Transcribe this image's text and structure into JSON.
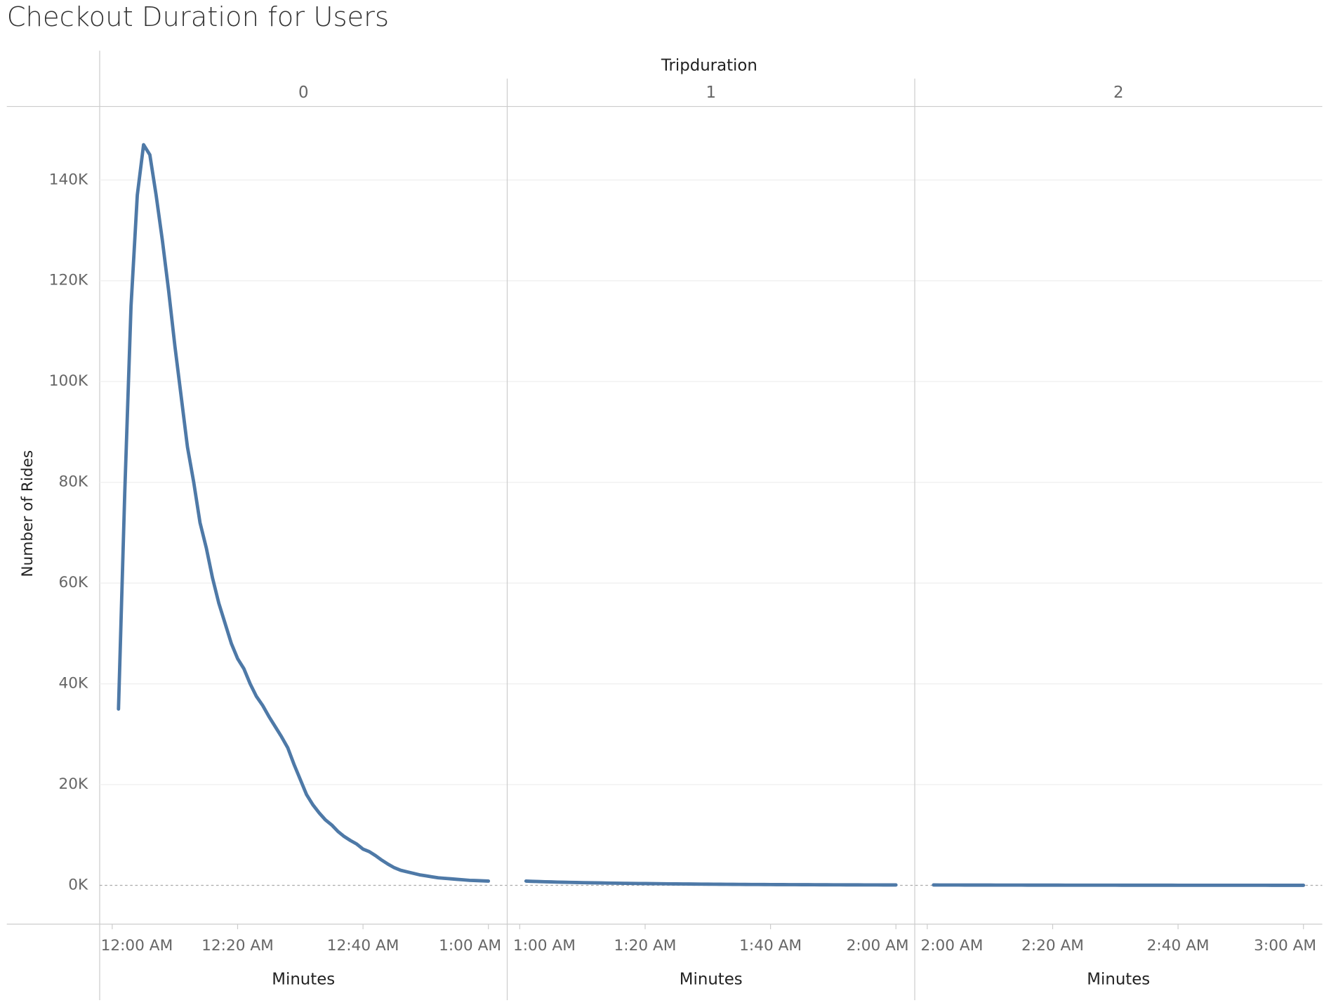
{
  "chart_data": {
    "type": "line",
    "title": "Checkout Duration for Users",
    "header": "Tripduration",
    "ylabel": "Number of Rides",
    "color": "#4e79a7",
    "grid": true,
    "ylim": [
      -7700,
      154600
    ],
    "yticks": [
      {
        "value": 0,
        "label": "0K"
      },
      {
        "value": 20000,
        "label": "20K"
      },
      {
        "value": 40000,
        "label": "40K"
      },
      {
        "value": 60000,
        "label": "60K"
      },
      {
        "value": 80000,
        "label": "80K"
      },
      {
        "value": 100000,
        "label": "100K"
      },
      {
        "value": 120000,
        "label": "120K"
      },
      {
        "value": 140000,
        "label": "140K"
      }
    ],
    "panels": [
      {
        "label": "0",
        "xlabel": "Minutes",
        "xlim": [
          -2,
          63
        ],
        "xticks": [
          {
            "value": 0,
            "label": "12:00 AM"
          },
          {
            "value": 20,
            "label": "12:20 AM"
          },
          {
            "value": 40,
            "label": "12:40 AM"
          },
          {
            "value": 60,
            "label": "1:00 AM"
          }
        ],
        "x": [
          1,
          2,
          3,
          4,
          5,
          6,
          7,
          8,
          9,
          10,
          11,
          12,
          13,
          14,
          15,
          16,
          17,
          18,
          19,
          20,
          21,
          22,
          23,
          24,
          25,
          26,
          27,
          28,
          29,
          30,
          31,
          32,
          33,
          34,
          35,
          36,
          37,
          38,
          39,
          40,
          41,
          42,
          43,
          44,
          45,
          46,
          47,
          48,
          49,
          50,
          51,
          52,
          53,
          54,
          55,
          56,
          57,
          58,
          59,
          60
        ],
        "values": [
          35000,
          78000,
          115000,
          137000,
          147000,
          145000,
          137000,
          128000,
          118000,
          107000,
          97000,
          87000,
          80000,
          72000,
          67000,
          61000,
          56000,
          52000,
          48000,
          45000,
          43000,
          40000,
          37500,
          35700,
          33500,
          31500,
          29500,
          27300,
          24000,
          21000,
          18000,
          16000,
          14400,
          13000,
          12000,
          10700,
          9700,
          8900,
          8200,
          7200,
          6700,
          5900,
          5000,
          4200,
          3500,
          3000,
          2700,
          2400,
          2100,
          1900,
          1700,
          1500,
          1400,
          1300,
          1200,
          1100,
          1000,
          950,
          900,
          850
        ]
      },
      {
        "label": "1",
        "xlabel": "Minutes",
        "xlim": [
          -2,
          63
        ],
        "xticks": [
          {
            "value": 0,
            "label": "1:00 AM"
          },
          {
            "value": 20,
            "label": "1:20 AM"
          },
          {
            "value": 40,
            "label": "1:40 AM"
          },
          {
            "value": 60,
            "label": "2:00 AM"
          }
        ],
        "x": [
          1,
          2,
          3,
          4,
          5,
          6,
          7,
          8,
          9,
          10,
          11,
          12,
          13,
          14,
          15,
          16,
          17,
          18,
          19,
          20,
          21,
          22,
          23,
          24,
          25,
          26,
          27,
          28,
          29,
          30,
          31,
          32,
          33,
          34,
          35,
          36,
          37,
          38,
          39,
          40,
          41,
          42,
          43,
          44,
          45,
          46,
          47,
          48,
          49,
          50,
          51,
          52,
          53,
          54,
          55,
          56,
          57,
          58,
          59,
          60
        ],
        "values": [
          850,
          800,
          760,
          720,
          690,
          650,
          620,
          600,
          570,
          540,
          520,
          500,
          480,
          460,
          440,
          420,
          400,
          390,
          370,
          360,
          340,
          330,
          320,
          300,
          290,
          280,
          270,
          260,
          250,
          240,
          230,
          220,
          210,
          200,
          195,
          190,
          180,
          175,
          170,
          160,
          155,
          150,
          145,
          140,
          135,
          130,
          125,
          120,
          115,
          110,
          105,
          100,
          98,
          95,
          92,
          90,
          88,
          85,
          82,
          80
        ]
      },
      {
        "label": "2",
        "xlabel": "Minutes",
        "xlim": [
          -2,
          63
        ],
        "xticks": [
          {
            "value": 0,
            "label": "2:00 AM"
          },
          {
            "value": 20,
            "label": "2:20 AM"
          },
          {
            "value": 40,
            "label": "2:40 AM"
          },
          {
            "value": 60,
            "label": "3:00 AM"
          }
        ],
        "x": [
          1,
          2,
          3,
          4,
          5,
          6,
          7,
          8,
          9,
          10,
          11,
          12,
          13,
          14,
          15,
          16,
          17,
          18,
          19,
          20,
          21,
          22,
          23,
          24,
          25,
          26,
          27,
          28,
          29,
          30,
          31,
          32,
          33,
          34,
          35,
          36,
          37,
          38,
          39,
          40,
          41,
          42,
          43,
          44,
          45,
          46,
          47,
          48,
          49,
          50,
          51,
          52,
          53,
          54,
          55,
          56,
          57,
          58,
          59,
          60
        ],
        "values": [
          78,
          76,
          74,
          72,
          70,
          68,
          66,
          64,
          62,
          60,
          58,
          56,
          55,
          53,
          52,
          50,
          49,
          47,
          46,
          45,
          44,
          42,
          41,
          40,
          39,
          38,
          37,
          36,
          35,
          34,
          33,
          32,
          31,
          30,
          29,
          28,
          27,
          27,
          26,
          25,
          24,
          24,
          23,
          22,
          22,
          21,
          20,
          20,
          19,
          19,
          18,
          18,
          17,
          17,
          16,
          16,
          15,
          15,
          15,
          14
        ]
      }
    ]
  }
}
